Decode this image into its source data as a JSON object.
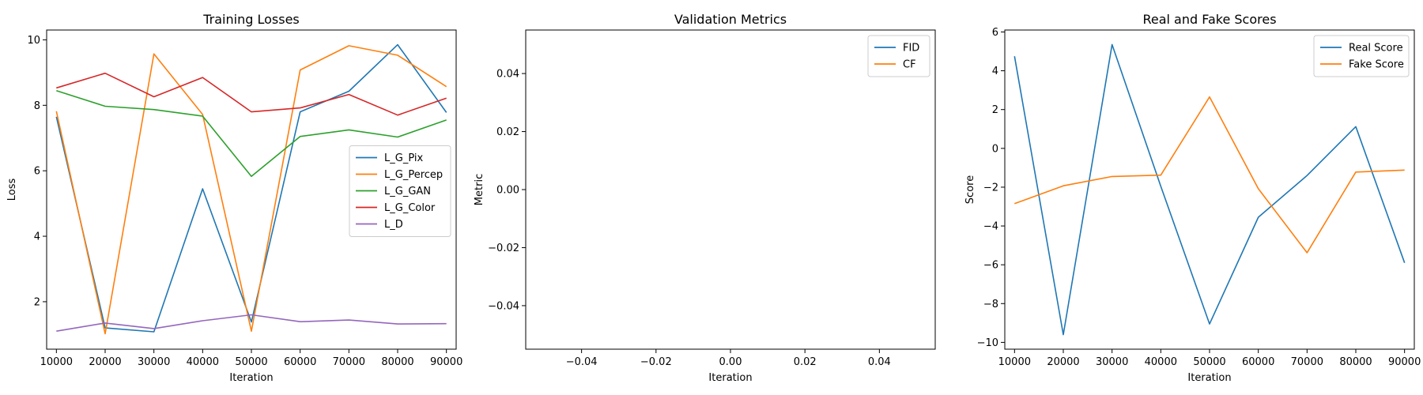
{
  "chart_data": [
    {
      "type": "line",
      "title": "Training Losses",
      "xlabel": "Iteration",
      "ylabel": "Loss",
      "x": [
        10000,
        20000,
        30000,
        40000,
        50000,
        60000,
        70000,
        80000,
        90000
      ],
      "xlim": [
        8000,
        92000
      ],
      "ylim": [
        0.55,
        10.3
      ],
      "xticks": [
        10000,
        20000,
        30000,
        40000,
        50000,
        60000,
        70000,
        80000,
        90000
      ],
      "yticks": [
        2,
        4,
        6,
        8,
        10
      ],
      "legend": "center-right",
      "grid": false,
      "series": [
        {
          "name": "L_G_Pix",
          "color": "#1f77b4",
          "values": [
            7.65,
            1.2,
            1.08,
            5.45,
            1.38,
            7.8,
            8.43,
            9.85,
            7.78
          ]
        },
        {
          "name": "L_G_Percep",
          "color": "#ff7f0e",
          "values": [
            7.82,
            1.02,
            9.57,
            7.72,
            1.1,
            9.08,
            9.82,
            9.53,
            8.57
          ]
        },
        {
          "name": "L_G_GAN",
          "color": "#2ca02c",
          "values": [
            8.45,
            7.97,
            7.87,
            7.67,
            5.83,
            7.05,
            7.25,
            7.03,
            7.55
          ]
        },
        {
          "name": "L_G_Color",
          "color": "#d62728",
          "values": [
            8.53,
            8.98,
            8.26,
            8.85,
            7.8,
            7.92,
            8.33,
            7.7,
            8.22
          ]
        },
        {
          "name": "L_D",
          "color": "#9467bd",
          "values": [
            1.1,
            1.35,
            1.18,
            1.42,
            1.6,
            1.39,
            1.44,
            1.32,
            1.33
          ]
        }
      ]
    },
    {
      "type": "line",
      "title": "Validation Metrics",
      "xlabel": "Iteration",
      "ylabel": "Metric",
      "x": [],
      "xlim": [
        -0.055,
        0.055
      ],
      "ylim": [
        -0.055,
        0.055
      ],
      "xticks": [
        -0.04,
        -0.02,
        0.0,
        0.02,
        0.04
      ],
      "xtick_labels": [
        "−0.04",
        "−0.02",
        "0.00",
        "0.02",
        "0.04"
      ],
      "yticks": [
        -0.04,
        -0.02,
        0.0,
        0.02,
        0.04
      ],
      "ytick_labels": [
        "−0.04",
        "−0.02",
        "0.00",
        "0.02",
        "0.04"
      ],
      "legend": "top-right",
      "grid": false,
      "series": [
        {
          "name": "FID",
          "color": "#1f77b4",
          "values": []
        },
        {
          "name": "CF",
          "color": "#ff7f0e",
          "values": []
        }
      ]
    },
    {
      "type": "line",
      "title": "Real and Fake Scores",
      "xlabel": "Iteration",
      "ylabel": "Score",
      "x": [
        10000,
        20000,
        30000,
        40000,
        50000,
        60000,
        70000,
        80000,
        90000
      ],
      "xlim": [
        8000,
        92000
      ],
      "ylim": [
        -10.35,
        6.1
      ],
      "xticks": [
        10000,
        20000,
        30000,
        40000,
        50000,
        60000,
        70000,
        80000,
        90000
      ],
      "yticks": [
        -10,
        -8,
        -6,
        -4,
        -2,
        0,
        2,
        4,
        6
      ],
      "ytick_labels": [
        "−10",
        "−8",
        "−6",
        "−4",
        "−2",
        "0",
        "2",
        "4",
        "6"
      ],
      "legend": "top-right",
      "grid": false,
      "series": [
        {
          "name": "Real Score",
          "color": "#1f77b4",
          "values": [
            4.75,
            -9.6,
            5.35,
            -1.95,
            -9.05,
            -3.55,
            -1.4,
            1.12,
            -5.9
          ]
        },
        {
          "name": "Fake Score",
          "color": "#ff7f0e",
          "values": [
            -2.85,
            -1.93,
            -1.45,
            -1.38,
            2.65,
            -2.08,
            -5.38,
            -1.22,
            -1.12
          ]
        }
      ]
    }
  ]
}
